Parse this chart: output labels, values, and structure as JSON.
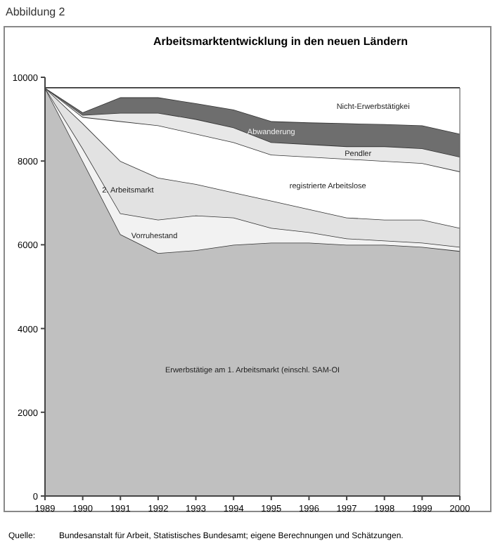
{
  "chart_data": {
    "type": "area",
    "stacked": true,
    "title": "Arbeitsmarktentwicklung in den neuen Ländern",
    "categories": [
      "1989",
      "1990",
      "1991",
      "1992",
      "1993",
      "1994",
      "1995",
      "1996",
      "1997",
      "1998",
      "1999",
      "2000"
    ],
    "ylim": [
      0,
      10000
    ],
    "yticks": [
      0,
      2000,
      4000,
      6000,
      8000,
      10000
    ],
    "grid": false,
    "series": [
      {
        "name": "Erwerbstätige am 1. Arbeitsmarkt (einschl. SAM-OI",
        "color": "#c0c0c0",
        "values": [
          9750,
          8000,
          6250,
          5800,
          5870,
          6000,
          6050,
          6050,
          6000,
          6000,
          5950,
          5850
        ]
      },
      {
        "name": "Vorruhestand",
        "color": "#f2f2f2",
        "values": [
          0,
          300,
          500,
          800,
          830,
          650,
          350,
          250,
          150,
          100,
          100,
          100
        ]
      },
      {
        "name": "2. Arbeitsmarkt",
        "color": "#e2e2e2",
        "values": [
          0,
          600,
          1250,
          1000,
          750,
          600,
          650,
          550,
          500,
          500,
          550,
          450
        ]
      },
      {
        "name": "registrierte Arbeitslose",
        "color": "#ffffff",
        "values": [
          0,
          150,
          950,
          1250,
          1200,
          1200,
          1100,
          1250,
          1400,
          1400,
          1350,
          1350
        ]
      },
      {
        "name": "Pendler",
        "color": "#e8e8e8",
        "values": [
          0,
          50,
          200,
          300,
          350,
          350,
          300,
          300,
          300,
          350,
          350,
          350
        ]
      },
      {
        "name": "Abwanderung",
        "color": "#6e6e6e",
        "values": [
          0,
          60,
          370,
          370,
          380,
          430,
          500,
          520,
          550,
          530,
          550,
          550
        ]
      },
      {
        "name": "Nicht-Erwerbstätigkei",
        "color": "#ffffff",
        "values": [
          0,
          590,
          230,
          230,
          370,
          520,
          800,
          830,
          850,
          870,
          900,
          1100
        ]
      }
    ],
    "annotations": [
      "Abbildung 2",
      "Quelle:",
      "Bundesanstalt für Arbeit, Statistisches Bundesamt; eigene Berechnungen und Schätzungen."
    ]
  }
}
